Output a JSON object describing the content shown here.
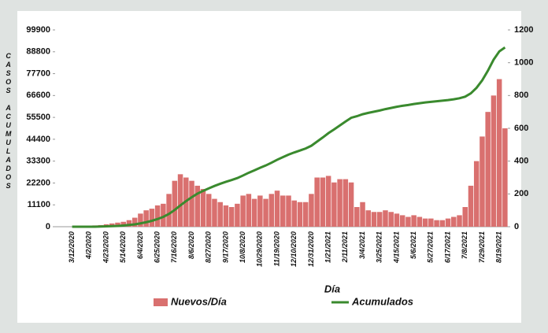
{
  "chart_data": {
    "type": "bar-line",
    "y_label": "CASOS ACUMULADOS",
    "x_label": "Día",
    "categories": [
      "3/12/2020",
      null,
      null,
      "4/2/2020",
      null,
      null,
      "4/23/2020",
      null,
      null,
      "5/14/2020",
      null,
      null,
      "6/4/2020",
      null,
      null,
      "6/25/2020",
      null,
      null,
      "7/16/2020",
      null,
      null,
      "8/6/2020",
      null,
      null,
      "8/27/2020",
      null,
      null,
      "9/17/2020",
      null,
      null,
      "10/8/2020",
      null,
      null,
      "10/29/2020",
      null,
      null,
      "11/19/2020",
      null,
      null,
      "12/10/2020",
      null,
      null,
      "12/31/2020",
      null,
      null,
      "1/21/2021",
      null,
      null,
      "2/11/2021",
      null,
      null,
      "3/4/2021",
      null,
      null,
      "3/25/2021",
      null,
      null,
      "4/15/2021",
      null,
      null,
      "5/6/2021",
      null,
      null,
      "5/27/2021",
      null,
      null,
      "6/17/2021",
      null,
      null,
      "7/8/2021",
      null,
      null,
      "7/29/2021",
      null,
      null,
      "8/19/2021",
      null
    ],
    "series": [
      {
        "name": "Nuevos/Día",
        "color": "#d9706f",
        "axis": "y2",
        "kind": "bar",
        "values": [
          0,
          0,
          2,
          5,
          8,
          10,
          15,
          20,
          25,
          30,
          40,
          55,
          80,
          100,
          110,
          130,
          140,
          200,
          280,
          320,
          300,
          280,
          250,
          230,
          200,
          170,
          150,
          130,
          120,
          140,
          190,
          200,
          170,
          190,
          170,
          200,
          220,
          190,
          190,
          160,
          150,
          150,
          200,
          300,
          300,
          310,
          270,
          290,
          290,
          270,
          120,
          150,
          100,
          90,
          90,
          100,
          90,
          80,
          70,
          60,
          70,
          60,
          50,
          50,
          40,
          40,
          50,
          60,
          70,
          120,
          250,
          400,
          550,
          700,
          800,
          900,
          600
        ]
      },
      {
        "name": "Acumulados",
        "color": "#3a8a2e",
        "axis": "y",
        "kind": "line",
        "values": [
          0,
          0,
          0,
          0,
          0,
          100,
          200,
          300,
          400,
          600,
          900,
          1200,
          1700,
          2300,
          3000,
          3900,
          5000,
          6500,
          8500,
          10800,
          13000,
          15000,
          16800,
          18200,
          19500,
          20700,
          21800,
          22800,
          23700,
          24700,
          26000,
          27400,
          28600,
          29900,
          31100,
          32500,
          34000,
          35300,
          36600,
          37700,
          38700,
          39700,
          41100,
          43200,
          45300,
          47500,
          49400,
          51400,
          53400,
          55300,
          56100,
          57100,
          57800,
          58400,
          59000,
          59700,
          60300,
          60900,
          61400,
          61800,
          62300,
          62700,
          63100,
          63400,
          63700,
          64000,
          64300,
          64700,
          65200,
          66000,
          67700,
          70500,
          74300,
          79200,
          84800,
          89000,
          91000
        ]
      }
    ],
    "ylim": [
      0,
      99900
    ],
    "yticks": [
      0,
      11100,
      22200,
      33300,
      44400,
      55500,
      66600,
      77700,
      88800,
      99900
    ],
    "y2lim": [
      0,
      1200
    ],
    "y2ticks": [
      0,
      200,
      400,
      600,
      800,
      1000,
      1200
    ],
    "grid": false
  }
}
